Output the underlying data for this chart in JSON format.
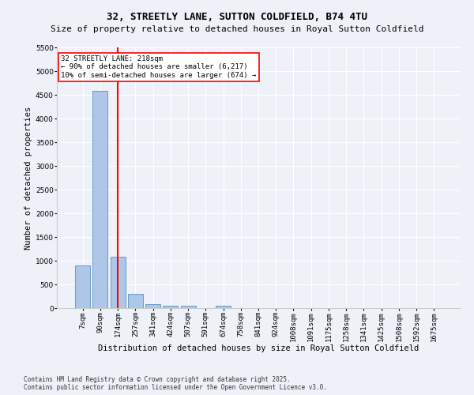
{
  "title": "32, STREETLY LANE, SUTTON COLDFIELD, B74 4TU",
  "subtitle": "Size of property relative to detached houses in Royal Sutton Coldfield",
  "xlabel": "Distribution of detached houses by size in Royal Sutton Coldfield",
  "ylabel": "Number of detached properties",
  "bar_labels": [
    "7sqm",
    "90sqm",
    "174sqm",
    "257sqm",
    "341sqm",
    "424sqm",
    "507sqm",
    "591sqm",
    "674sqm",
    "758sqm",
    "841sqm",
    "924sqm",
    "1008sqm",
    "1091sqm",
    "1175sqm",
    "1258sqm",
    "1341sqm",
    "1425sqm",
    "1508sqm",
    "1592sqm",
    "1675sqm"
  ],
  "bar_values": [
    900,
    4580,
    1080,
    295,
    80,
    55,
    55,
    0,
    45,
    0,
    0,
    0,
    0,
    0,
    0,
    0,
    0,
    0,
    0,
    0,
    0
  ],
  "bar_color": "#aec6e8",
  "bar_edge_color": "#5a8fc0",
  "vline_x": 2,
  "vline_color": "red",
  "annotation_text": "32 STREETLY LANE: 218sqm\n← 90% of detached houses are smaller (6,217)\n10% of semi-detached houses are larger (674) →",
  "annotation_box_color": "white",
  "annotation_box_edge_color": "red",
  "ylim": [
    0,
    5500
  ],
  "yticks": [
    0,
    500,
    1000,
    1500,
    2000,
    2500,
    3000,
    3500,
    4000,
    4500,
    5000,
    5500
  ],
  "background_color": "#eef2f8",
  "footer_text": "Contains HM Land Registry data © Crown copyright and database right 2025.\nContains public sector information licensed under the Open Government Licence v3.0.",
  "title_fontsize": 9,
  "subtitle_fontsize": 8,
  "tick_fontsize": 6.5,
  "label_fontsize": 7.5
}
